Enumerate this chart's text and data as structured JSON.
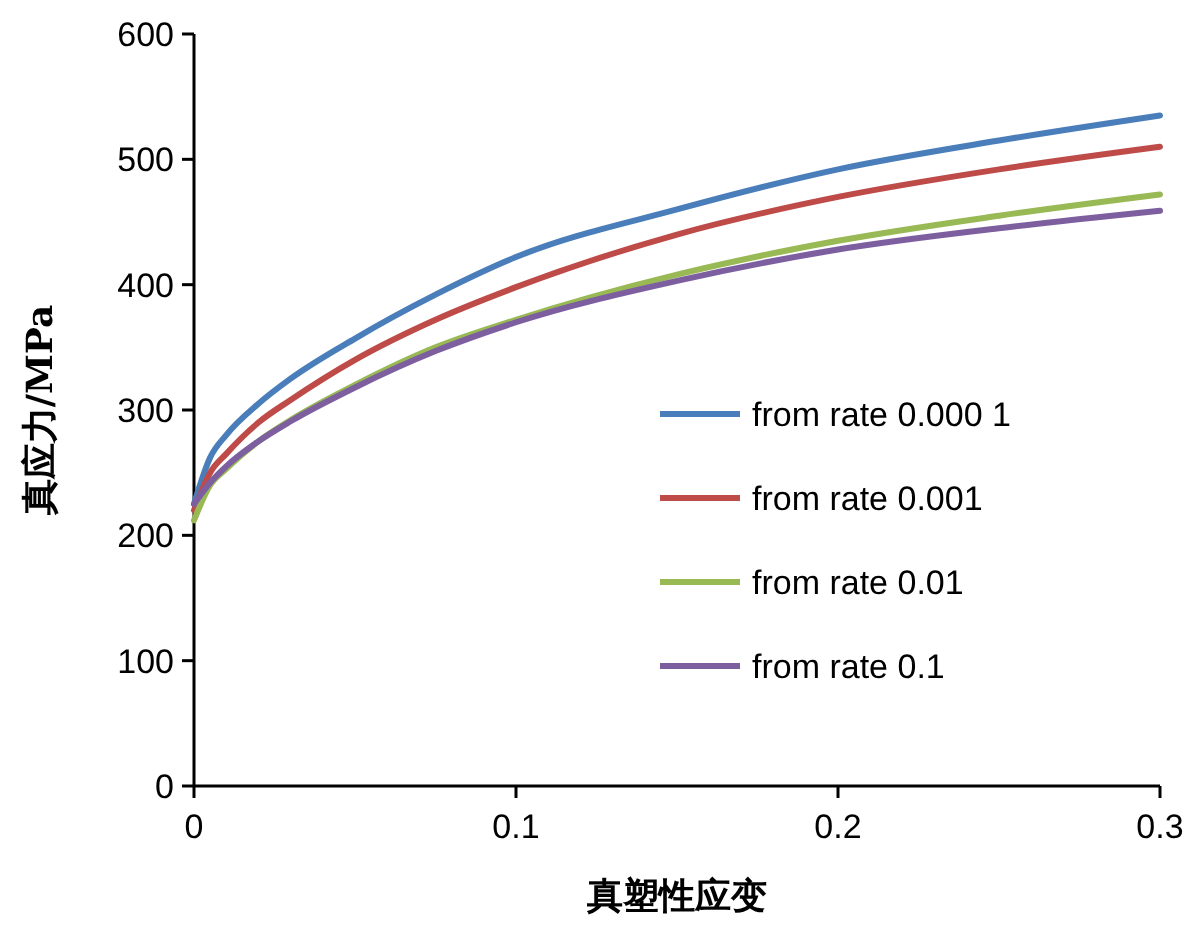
{
  "chart_data": {
    "type": "line",
    "xlabel": "真塑性应变",
    "ylabel": "真应力/MPa",
    "x": [
      0,
      0.005,
      0.01,
      0.02,
      0.03,
      0.05,
      0.075,
      0.1,
      0.15,
      0.2,
      0.25,
      0.3
    ],
    "xlim": [
      0,
      0.3
    ],
    "xticks": [
      0,
      0.1,
      0.2,
      0.3
    ],
    "ylim": [
      0,
      600
    ],
    "yticks": [
      0,
      100,
      200,
      300,
      400,
      500,
      600
    ],
    "series": [
      {
        "name": "from rate 0.000 1",
        "color": "#4a7ebb",
        "values": [
          225,
          262,
          280,
          305,
          325,
          357,
          392,
          422,
          460,
          492,
          515,
          535
        ]
      },
      {
        "name": "from rate 0.001",
        "color": "#be4b48",
        "values": [
          220,
          250,
          265,
          290,
          308,
          340,
          372,
          398,
          440,
          470,
          492,
          510
        ]
      },
      {
        "name": "from rate 0.01",
        "color": "#98b954",
        "values": [
          212,
          240,
          253,
          275,
          292,
          320,
          350,
          372,
          408,
          435,
          455,
          472
        ]
      },
      {
        "name": "from rate 0.1",
        "color": "#7d5fa0",
        "values": [
          225,
          242,
          255,
          275,
          291,
          318,
          347,
          370,
          403,
          428,
          445,
          459
        ]
      }
    ],
    "legend": "right",
    "marker": "none",
    "line_style": "solid",
    "grid": false
  }
}
